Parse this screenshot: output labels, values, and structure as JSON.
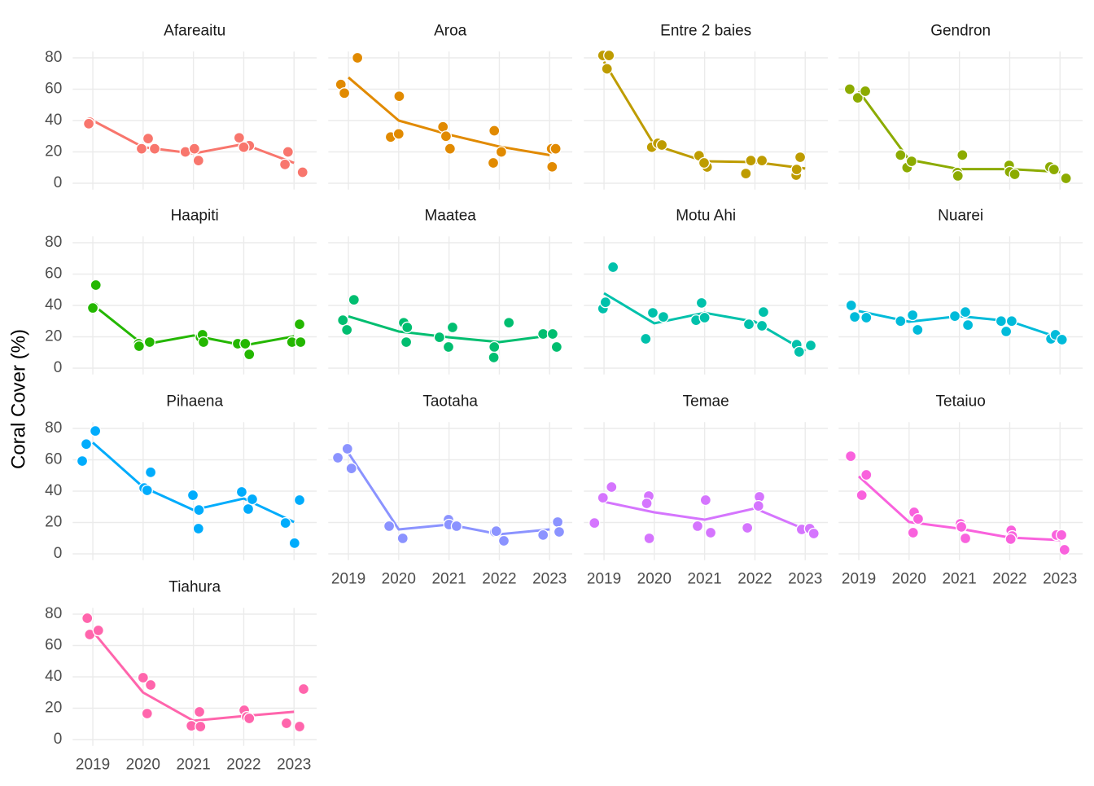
{
  "chart_data": {
    "type": "line",
    "ylabel": "Coral Cover (%)",
    "x": [
      2019,
      2020,
      2021,
      2022,
      2023
    ],
    "xlim": [
      2018.6,
      2023.45
    ],
    "xticks": [
      2019,
      2020,
      2021,
      2022,
      2023
    ],
    "ylim": [
      -4,
      84
    ],
    "yticks": [
      0,
      20,
      40,
      60,
      80
    ],
    "grid": true,
    "panels": [
      {
        "title": "Afareaitu",
        "color": "#F8766D",
        "values": [
          40,
          23,
          19,
          25,
          13
        ],
        "points": {
          "x": [
            2018.94,
            2018.92,
            2019.97,
            2020.1,
            2020.23,
            2020.84,
            2021.02,
            2021.1,
            2021.91,
            2022.11,
            2022.0,
            2022.82,
            2022.88,
            2023.17
          ],
          "y": [
            39,
            38,
            22,
            28.5,
            22,
            20,
            22,
            14.5,
            29,
            24,
            23,
            12,
            20,
            7
          ]
        }
      },
      {
        "title": "Aroa",
        "color": "#E18A00",
        "values": [
          67.5,
          40,
          31,
          23.4,
          18
        ],
        "points": {
          "x": [
            2018.85,
            2018.92,
            2019.18,
            2019.84,
            2020.0,
            2020.01,
            2020.88,
            2020.94,
            2021.02,
            2021.9,
            2021.88,
            2022.04,
            2023.04,
            2023.12,
            2023.05
          ],
          "y": [
            63,
            57.5,
            80,
            29.5,
            31.5,
            55.5,
            36,
            30,
            22,
            33.5,
            13,
            20,
            22,
            22,
            10.5
          ]
        }
      },
      {
        "title": "Entre 2 baies",
        "color": "#BE9C00",
        "values": [
          77.5,
          24.4,
          14,
          13.5,
          9.4
        ],
        "points": {
          "x": [
            2018.98,
            2019.1,
            2019.06,
            2019.95,
            2020.07,
            2020.15,
            2020.89,
            2021.05,
            2020.99,
            2021.82,
            2021.92,
            2022.14,
            2022.82,
            2022.83,
            2022.9
          ],
          "y": [
            81.5,
            81.5,
            73,
            23,
            25.5,
            24.4,
            17.6,
            10.4,
            13,
            6.2,
            14.5,
            14.5,
            5.2,
            8.8,
            16.6
          ]
        }
      },
      {
        "title": "Gendron",
        "color": "#8CAB00",
        "values": [
          58.7,
          15,
          9,
          9,
          7.3
        ],
        "points": {
          "x": [
            2018.82,
            2018.98,
            2019.13,
            2019.83,
            2019.96,
            2020.05,
            2020.96,
            2020.97,
            2021.06,
            2021.99,
            2022.0,
            2022.1,
            2022.8,
            2022.88,
            2023.12
          ],
          "y": [
            60,
            54.5,
            58.7,
            18,
            10,
            14,
            6.8,
            4.7,
            18,
            11.4,
            7.3,
            5.7,
            10.4,
            8.8,
            3.1
          ]
        }
      },
      {
        "title": "Haapiti",
        "color": "#24B700",
        "values": [
          40.5,
          15,
          20.8,
          14.5,
          20.3
        ],
        "points": {
          "x": [
            2019.02,
            2019.0,
            2019.06,
            2019.91,
            2019.92,
            2020.13,
            2021.14,
            2021.18,
            2021.2,
            2021.88,
            2022.03,
            2022.11,
            2022.96,
            2023.11,
            2023.13
          ],
          "y": [
            39,
            38.4,
            53,
            15.6,
            14,
            16.6,
            19.7,
            21.3,
            16.6,
            15.6,
            15.6,
            8.8,
            16.6,
            28,
            16.6
          ]
        }
      },
      {
        "title": "Maatea",
        "color": "#00BE70",
        "values": [
          33,
          23.4,
          19.7,
          16.6,
          20.8
        ],
        "points": {
          "x": [
            2018.89,
            2018.97,
            2019.11,
            2020.1,
            2020.17,
            2020.15,
            2020.81,
            2020.99,
            2021.07,
            2021.9,
            2021.89,
            2022.19,
            2022.87,
            2023.06,
            2023.14
          ],
          "y": [
            30.6,
            24.4,
            43.6,
            29,
            26,
            16.6,
            19.7,
            13.5,
            26,
            13.5,
            6.8,
            29,
            21.8,
            21.8,
            13.5
          ]
        }
      },
      {
        "title": "Motu Ahi",
        "color": "#00C1AB",
        "values": [
          47.8,
          28.6,
          35.3,
          29.6,
          10.9
        ],
        "points": {
          "x": [
            2018.98,
            2019.03,
            2019.18,
            2019.83,
            2019.97,
            2020.18,
            2020.83,
            2020.94,
            2021.0,
            2021.88,
            2022.14,
            2022.17,
            2022.83,
            2022.88,
            2023.11
          ],
          "y": [
            38,
            42,
            64.4,
            18.7,
            35.3,
            32.7,
            30.6,
            41.6,
            32.2,
            28,
            27,
            35.8,
            15,
            10.4,
            14.5
          ]
        }
      },
      {
        "title": "Nuarei",
        "color": "#00BBDA",
        "values": [
          36.4,
          29.6,
          33.2,
          30,
          19.2
        ],
        "points": {
          "x": [
            2018.85,
            2018.92,
            2019.15,
            2019.83,
            2020.07,
            2020.17,
            2020.91,
            2021.12,
            2021.17,
            2021.83,
            2021.93,
            2022.04,
            2022.82,
            2022.91,
            2023.04
          ],
          "y": [
            40,
            32.7,
            32.2,
            30,
            33.8,
            24.4,
            33.2,
            35.8,
            27.5,
            30,
            23.4,
            30,
            18.7,
            21.3,
            18.2
          ]
        }
      },
      {
        "title": "Pihaena",
        "color": "#00ACFC",
        "values": [
          71,
          42.6,
          28,
          35.3,
          20.3
        ],
        "points": {
          "x": [
            2018.79,
            2018.87,
            2019.05,
            2020.02,
            2020.08,
            2020.15,
            2020.99,
            2021.1,
            2021.11,
            2021.96,
            2022.09,
            2022.17,
            2022.83,
            2023.01,
            2023.11
          ],
          "y": [
            59.2,
            70,
            78.4,
            42,
            40.5,
            52,
            37.4,
            16.1,
            28,
            39.5,
            28.6,
            34.8,
            19.7,
            6.8,
            34.3
          ]
        }
      },
      {
        "title": "Taotaha",
        "color": "#8B93FF",
        "values": [
          64.4,
          15.6,
          18.7,
          12.5,
          15.6
        ],
        "points": {
          "x": [
            2018.79,
            2018.98,
            2019.06,
            2019.81,
            2020.08,
            2020.99,
            2021.0,
            2021.15,
            2021.91,
            2021.94,
            2022.09,
            2022.87,
            2023.16,
            2023.19
          ],
          "y": [
            61.3,
            67,
            54.5,
            17.7,
            9.9,
            21.8,
            18.7,
            17.7,
            14,
            14.5,
            8.3,
            12,
            20.3,
            14
          ]
        }
      },
      {
        "title": "Temae",
        "color": "#D575FE",
        "values": [
          33.2,
          26.5,
          21.8,
          29,
          15.6
        ],
        "points": {
          "x": [
            2018.81,
            2018.98,
            2019.15,
            2019.89,
            2019.85,
            2019.9,
            2020.86,
            2021.02,
            2021.12,
            2021.85,
            2022.09,
            2022.07,
            2022.93,
            2023.09,
            2023.17
          ],
          "y": [
            19.7,
            35.8,
            42.6,
            36.9,
            32.2,
            9.9,
            17.7,
            34.3,
            13.5,
            16.6,
            36.4,
            30.6,
            15.6,
            16.1,
            13
          ]
        }
      },
      {
        "title": "Tetaiuo",
        "color": "#F962DD",
        "values": [
          49.4,
          20.3,
          16.1,
          10.4,
          8.8
        ],
        "points": {
          "x": [
            2018.84,
            2019.06,
            2019.15,
            2020.08,
            2020.1,
            2020.18,
            2021.02,
            2021.04,
            2021.12,
            2022.03,
            2022.05,
            2022.02,
            2022.93,
            2023.03,
            2023.09
          ],
          "y": [
            62.3,
            37.4,
            50.4,
            13.5,
            26.5,
            22.3,
            19.2,
            17.2,
            9.9,
            15,
            11.4,
            9.4,
            12,
            12,
            2.6
          ]
        }
      },
      {
        "title": "Tiahura",
        "color": "#FF65AC",
        "values": [
          69,
          30,
          12,
          15,
          17.7
        ],
        "points": {
          "x": [
            2018.89,
            2018.94,
            2019.11,
            2020.0,
            2020.15,
            2020.08,
            2020.96,
            2021.12,
            2021.14,
            2022.01,
            2022.06,
            2022.11,
            2022.85,
            2023.11,
            2023.19
          ],
          "y": [
            77.4,
            67,
            69.6,
            39.5,
            34.8,
            16.6,
            8.8,
            17.7,
            8.3,
            18.7,
            14.5,
            13.5,
            10.4,
            8.3,
            32.2
          ]
        }
      }
    ]
  }
}
